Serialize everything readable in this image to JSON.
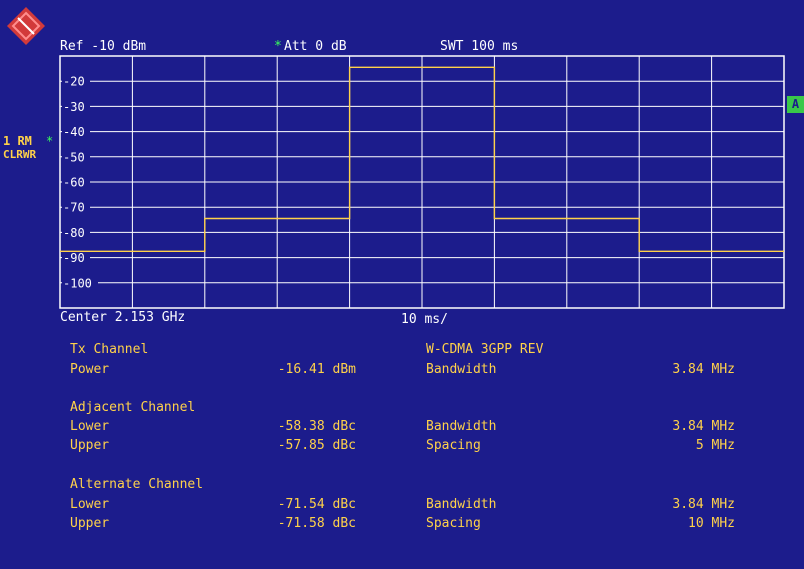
{
  "header": {
    "ref_level": "Ref -10 dBm",
    "att_star": "*",
    "att": "Att  0 dB",
    "swt": "SWT 100 ms"
  },
  "side": {
    "trace": "1 RM",
    "trace_star": "*",
    "mode": "CLRWR",
    "badge": "A"
  },
  "footer": {
    "center": "Center 2.153 GHz",
    "span": "10 ms/"
  },
  "colors": {
    "background": "#1c1c8c",
    "grid": "#ffffff",
    "trace": "#ffd24a",
    "label": "#ffd24a",
    "value": "#ffffff",
    "accent": "#39ff5a"
  },
  "chart_data": {
    "type": "line",
    "ylabels": [
      "-20",
      "-30",
      "-40",
      "-50",
      "-60",
      "-70",
      "-80",
      "-90",
      "-100"
    ],
    "ylim": [
      -110,
      -10
    ],
    "xlim": [
      0,
      10
    ],
    "grid": true,
    "series": [
      {
        "x": [
          0,
          2,
          2,
          4,
          4,
          6,
          6,
          8,
          8,
          10
        ],
        "y": [
          -87.5,
          -87.5,
          -74.5,
          -74.5,
          -14.5,
          -14.5,
          -74.5,
          -74.5,
          -87.5,
          -87.5
        ]
      }
    ]
  },
  "results": {
    "tx_heading": "Tx Channel",
    "tx_power_label": "Power",
    "tx_power_value": "-16.41 dBm",
    "standard": "W-CDMA 3GPP REV",
    "tx_bw_label": "Bandwidth",
    "tx_bw_value": "3.84 MHz",
    "adj_heading": "Adjacent Channel",
    "adj_lower_label": "Lower",
    "adj_lower_value": "-58.38 dBc",
    "adj_upper_label": "Upper",
    "adj_upper_value": "-57.85 dBc",
    "adj_bw_label": "Bandwidth",
    "adj_bw_value": "3.84 MHz",
    "adj_spacing_label": "Spacing",
    "adj_spacing_value": "5 MHz",
    "alt_heading": "Alternate Channel",
    "alt_lower_label": "Lower",
    "alt_lower_value": "-71.54 dBc",
    "alt_upper_label": "Upper",
    "alt_upper_value": "-71.58 dBc",
    "alt_bw_label": "Bandwidth",
    "alt_bw_value": "3.84 MHz",
    "alt_spacing_label": "Spacing",
    "alt_spacing_value": "10 MHz"
  }
}
